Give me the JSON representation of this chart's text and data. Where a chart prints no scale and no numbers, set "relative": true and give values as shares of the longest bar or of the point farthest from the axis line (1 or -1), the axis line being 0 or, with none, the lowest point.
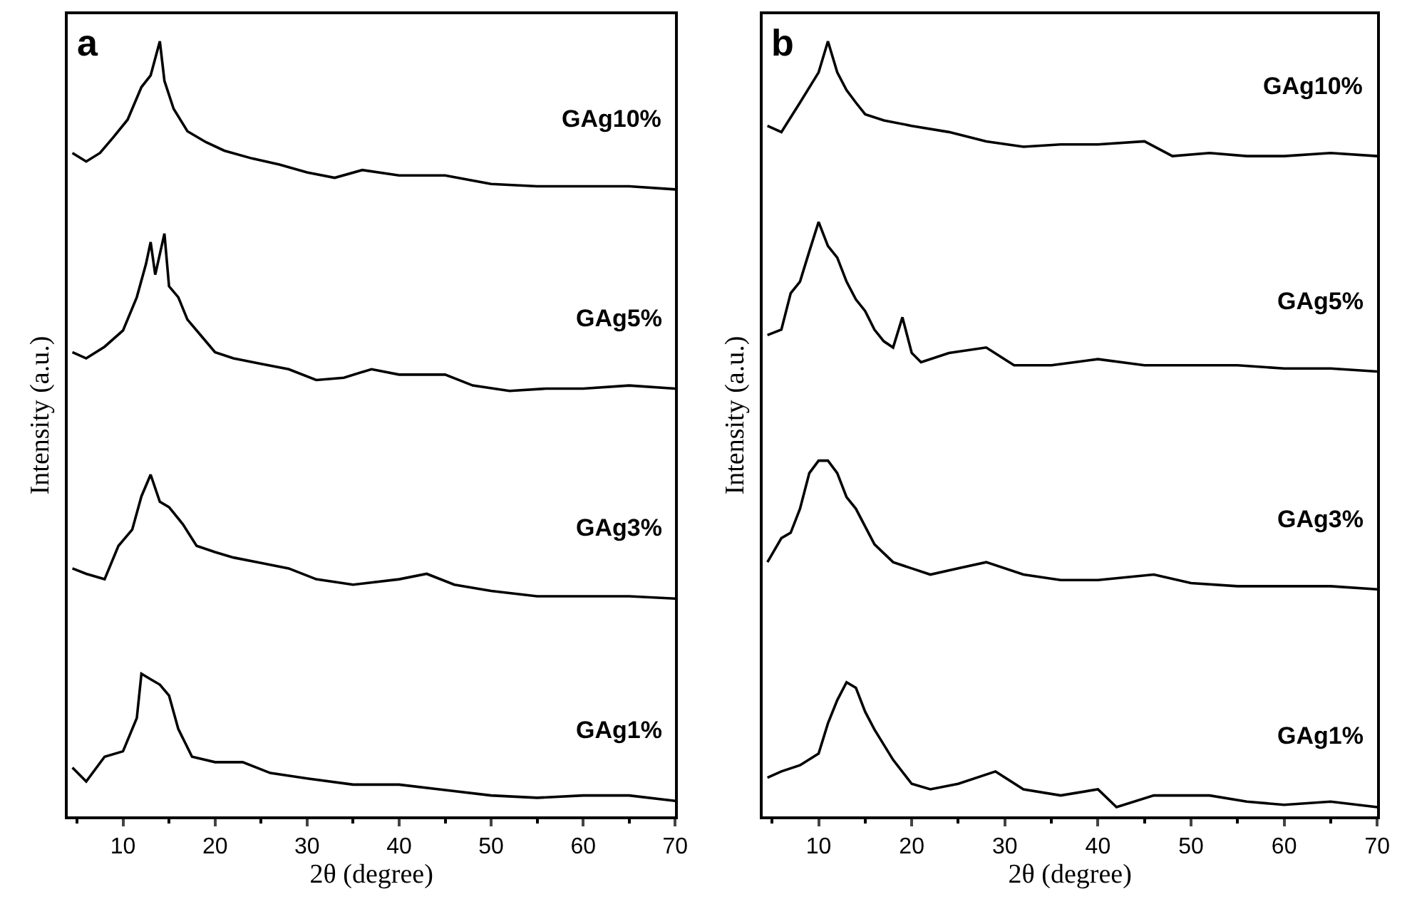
{
  "chart_data": [
    {
      "type": "line",
      "title": "a",
      "xlabel": "2θ (degree)",
      "ylabel": "Intensity (a.u.)",
      "relative": true,
      "xlim": [
        4,
        70
      ],
      "xticks": [
        10,
        20,
        30,
        40,
        50,
        60,
        70
      ],
      "marker": "none",
      "line_style": "solid",
      "series": [
        {
          "name": "GAg10%",
          "color": "#000000",
          "x": [
            4.5,
            6,
            7.5,
            9,
            10.5,
            12,
            13,
            14,
            14.5,
            15.5,
            17,
            19,
            21,
            24,
            27,
            30,
            33,
            36,
            40,
            45,
            50,
            55,
            60,
            65,
            70
          ],
          "values": [
            0.856,
            0.845,
            0.856,
            0.877,
            0.899,
            0.941,
            0.956,
            1.0,
            0.949,
            0.913,
            0.884,
            0.87,
            0.859,
            0.849,
            0.841,
            0.831,
            0.824,
            0.834,
            0.827,
            0.827,
            0.816,
            0.813,
            0.813,
            0.813,
            0.809
          ]
        },
        {
          "name": "GAg5%",
          "color": "#000000",
          "x": [
            4.5,
            6,
            8,
            10,
            11.5,
            12.5,
            13,
            13.5,
            14.5,
            15,
            16,
            17,
            18.5,
            20,
            22,
            25,
            28,
            31,
            34,
            37,
            40,
            45,
            48,
            52,
            56,
            60,
            65,
            70
          ],
          "values": [
            0.599,
            0.591,
            0.606,
            0.627,
            0.67,
            0.713,
            0.741,
            0.699,
            0.752,
            0.684,
            0.67,
            0.641,
            0.62,
            0.599,
            0.591,
            0.584,
            0.577,
            0.563,
            0.566,
            0.577,
            0.57,
            0.57,
            0.556,
            0.549,
            0.552,
            0.552,
            0.556,
            0.552
          ]
        },
        {
          "name": "GAg3%",
          "color": "#000000",
          "x": [
            4.5,
            6,
            8,
            9.5,
            11,
            12,
            13,
            14,
            15,
            16.5,
            18,
            20,
            22,
            25,
            28,
            31,
            35,
            40,
            43,
            46,
            50,
            55,
            60,
            65,
            70
          ],
          "values": [
            0.32,
            0.313,
            0.306,
            0.349,
            0.37,
            0.413,
            0.441,
            0.406,
            0.399,
            0.377,
            0.349,
            0.341,
            0.334,
            0.327,
            0.32,
            0.306,
            0.299,
            0.306,
            0.313,
            0.299,
            0.291,
            0.284,
            0.284,
            0.284,
            0.281
          ]
        },
        {
          "name": "GAg1%",
          "color": "#000000",
          "x": [
            4.5,
            6,
            8,
            10,
            11.5,
            12,
            13,
            14,
            15,
            16,
            17.5,
            20,
            23,
            26,
            30,
            35,
            40,
            45,
            50,
            55,
            60,
            65,
            70
          ],
          "values": [
            0.063,
            0.045,
            0.077,
            0.084,
            0.127,
            0.184,
            0.177,
            0.17,
            0.156,
            0.113,
            0.077,
            0.07,
            0.07,
            0.056,
            0.049,
            0.041,
            0.041,
            0.034,
            0.027,
            0.024,
            0.027,
            0.027,
            0.02
          ]
        }
      ]
    },
    {
      "type": "line",
      "title": "b",
      "xlabel": "2θ (degree)",
      "ylabel": "Intensity (a.u.)",
      "relative": true,
      "xlim": [
        4,
        70
      ],
      "xticks": [
        10,
        20,
        30,
        40,
        50,
        60,
        70
      ],
      "marker": "none",
      "line_style": "solid",
      "series": [
        {
          "name": "GAg10%",
          "color": "#000000",
          "x": [
            4.5,
            6,
            8,
            10,
            11,
            12,
            13,
            14,
            15,
            17,
            20,
            24,
            28,
            32,
            36,
            40,
            45,
            48,
            52,
            56,
            60,
            65,
            70
          ],
          "values": [
            0.891,
            0.883,
            0.921,
            0.96,
            1.0,
            0.96,
            0.937,
            0.921,
            0.906,
            0.898,
            0.891,
            0.883,
            0.871,
            0.864,
            0.867,
            0.867,
            0.871,
            0.852,
            0.856,
            0.852,
            0.852,
            0.856,
            0.852
          ]
        },
        {
          "name": "GAg5%",
          "color": "#000000",
          "x": [
            4.5,
            6,
            7,
            8,
            9,
            10,
            11,
            12,
            13,
            14,
            15,
            16,
            17,
            18,
            19,
            20,
            21,
            24,
            28,
            31,
            35,
            40,
            45,
            50,
            55,
            60,
            65,
            70
          ],
          "values": [
            0.621,
            0.628,
            0.675,
            0.69,
            0.729,
            0.767,
            0.736,
            0.721,
            0.69,
            0.667,
            0.652,
            0.628,
            0.613,
            0.605,
            0.644,
            0.598,
            0.586,
            0.598,
            0.605,
            0.582,
            0.582,
            0.59,
            0.582,
            0.582,
            0.582,
            0.578,
            0.578,
            0.574
          ]
        },
        {
          "name": "GAg3%",
          "color": "#000000",
          "x": [
            4.5,
            6,
            7,
            8,
            9,
            10,
            11,
            12,
            13,
            14,
            15,
            16,
            18,
            20,
            22,
            25,
            28,
            32,
            36,
            40,
            46,
            50,
            55,
            60,
            65,
            70
          ],
          "values": [
            0.328,
            0.359,
            0.366,
            0.397,
            0.443,
            0.459,
            0.459,
            0.443,
            0.412,
            0.397,
            0.374,
            0.351,
            0.328,
            0.32,
            0.312,
            0.32,
            0.328,
            0.312,
            0.305,
            0.305,
            0.312,
            0.301,
            0.297,
            0.297,
            0.297,
            0.293
          ]
        },
        {
          "name": "GAg1%",
          "color": "#000000",
          "x": [
            4.5,
            6,
            8,
            10,
            11,
            12,
            13,
            14,
            15,
            16,
            18,
            20,
            22,
            25,
            29,
            32,
            36,
            40,
            42,
            46,
            52,
            56,
            60,
            65,
            70
          ],
          "values": [
            0.05,
            0.058,
            0.066,
            0.081,
            0.12,
            0.15,
            0.173,
            0.166,
            0.135,
            0.112,
            0.073,
            0.042,
            0.035,
            0.042,
            0.058,
            0.035,
            0.027,
            0.035,
            0.012,
            0.027,
            0.027,
            0.019,
            0.015,
            0.019,
            0.012
          ]
        }
      ]
    }
  ]
}
